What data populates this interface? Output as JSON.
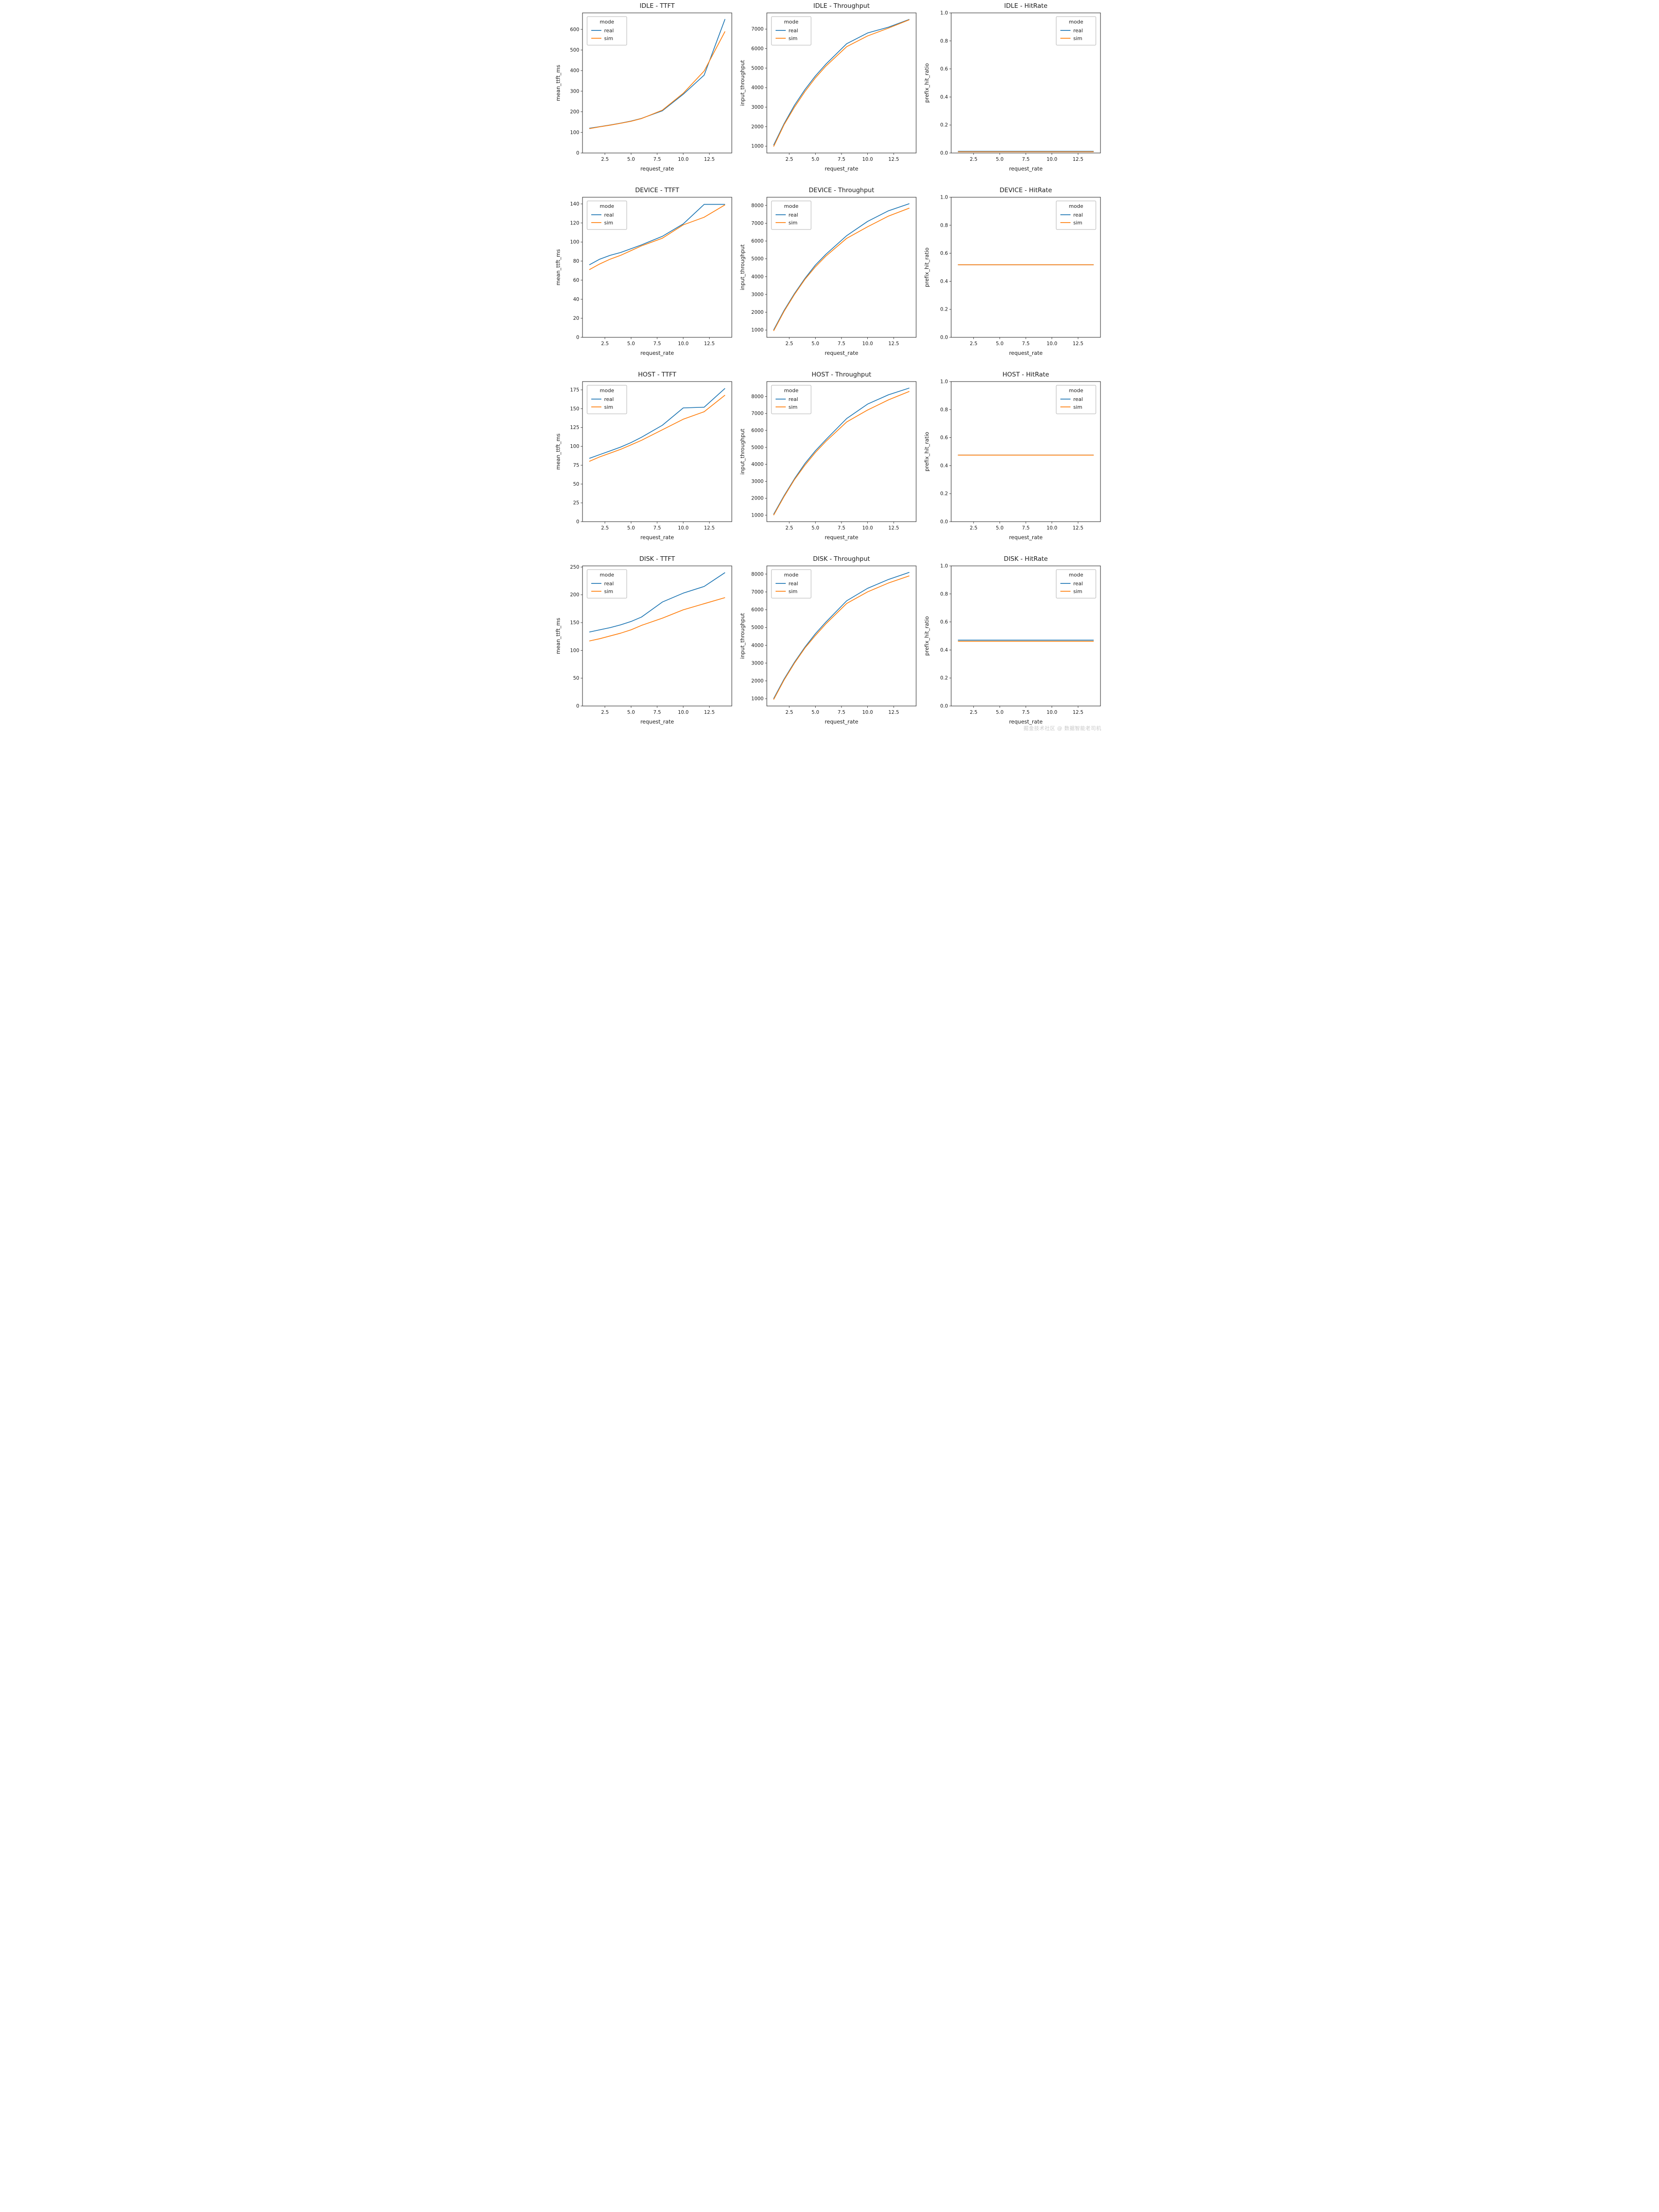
{
  "page": {
    "watermark": "掘金技术社区 @ 数据智能老司机"
  },
  "colors": {
    "real": "#1f77b4",
    "sim": "#ff7f0e"
  },
  "legend": {
    "title": "mode",
    "entries": [
      "real",
      "sim"
    ]
  },
  "chart_data": [
    {
      "id": "idle-ttft",
      "type": "line",
      "title": "IDLE - TTFT",
      "xlabel": "request_rate",
      "ylabel": "mean_ttft_ms",
      "x": [
        1,
        2,
        3,
        4,
        5,
        6,
        8,
        10,
        12,
        14
      ],
      "xlim": [
        0.35,
        14.65
      ],
      "ylim": [
        0,
        680
      ],
      "xticks": [
        2.5,
        5.0,
        7.5,
        10.0,
        12.5
      ],
      "xtick_labels": [
        "2.5",
        "5.0",
        "7.5",
        "10.0",
        "12.5"
      ],
      "yticks": [
        0,
        100,
        200,
        300,
        400,
        500,
        600
      ],
      "ytick_labels": [
        "0",
        "100",
        "200",
        "300",
        "400",
        "500",
        "600"
      ],
      "legend_pos": "upper-left",
      "grid": false,
      "series": [
        {
          "name": "real",
          "color": "#1f77b4",
          "values": [
            120,
            128,
            136,
            145,
            155,
            168,
            205,
            285,
            378,
            650
          ]
        },
        {
          "name": "sim",
          "color": "#ff7f0e",
          "values": [
            118,
            127,
            135,
            144,
            154,
            167,
            208,
            290,
            398,
            590
          ]
        }
      ]
    },
    {
      "id": "idle-throughput",
      "type": "line",
      "title": "IDLE - Throughput",
      "xlabel": "request_rate",
      "ylabel": "input_throughput",
      "x": [
        1,
        2,
        3,
        4,
        5,
        6,
        8,
        10,
        12,
        14
      ],
      "xlim": [
        0.35,
        14.65
      ],
      "ylim": [
        650,
        7830
      ],
      "xticks": [
        2.5,
        5.0,
        7.5,
        10.0,
        12.5
      ],
      "xtick_labels": [
        "2.5",
        "5.0",
        "7.5",
        "10.0",
        "12.5"
      ],
      "yticks": [
        1000,
        2000,
        3000,
        4000,
        5000,
        6000,
        7000
      ],
      "ytick_labels": [
        "1000",
        "2000",
        "3000",
        "4000",
        "5000",
        "6000",
        "7000"
      ],
      "legend_pos": "upper-left",
      "grid": false,
      "series": [
        {
          "name": "real",
          "color": "#1f77b4",
          "values": [
            1050,
            2150,
            3100,
            3900,
            4600,
            5200,
            6250,
            6800,
            7100,
            7500
          ]
        },
        {
          "name": "sim",
          "color": "#ff7f0e",
          "values": [
            980,
            2100,
            3000,
            3800,
            4500,
            5100,
            6100,
            6650,
            7050,
            7480
          ]
        }
      ]
    },
    {
      "id": "idle-hitrate",
      "type": "line",
      "title": "IDLE - HitRate",
      "xlabel": "request_rate",
      "ylabel": "prefix_hit_ratio",
      "x": [
        1,
        2,
        3,
        4,
        5,
        6,
        8,
        10,
        12,
        14
      ],
      "xlim": [
        0.35,
        14.65
      ],
      "ylim": [
        0,
        1
      ],
      "xticks": [
        2.5,
        5.0,
        7.5,
        10.0,
        12.5
      ],
      "xtick_labels": [
        "2.5",
        "5.0",
        "7.5",
        "10.0",
        "12.5"
      ],
      "yticks": [
        0,
        0.2,
        0.4,
        0.6,
        0.8,
        1.0
      ],
      "ytick_labels": [
        "0.0",
        "0.2",
        "0.4",
        "0.6",
        "0.8",
        "1.0"
      ],
      "legend_pos": "upper-right",
      "grid": false,
      "series": [
        {
          "name": "real",
          "color": "#1f77b4",
          "values": [
            0.012,
            0.012,
            0.012,
            0.012,
            0.012,
            0.012,
            0.012,
            0.012,
            0.012,
            0.012
          ]
        },
        {
          "name": "sim",
          "color": "#ff7f0e",
          "values": [
            0.009,
            0.009,
            0.009,
            0.009,
            0.009,
            0.009,
            0.009,
            0.009,
            0.009,
            0.009
          ]
        }
      ]
    },
    {
      "id": "device-ttft",
      "type": "line",
      "title": "DEVICE - TTFT",
      "xlabel": "request_rate",
      "ylabel": "mean_ttft_ms",
      "x": [
        1,
        2,
        3,
        4,
        5,
        6,
        8,
        10,
        12,
        14
      ],
      "xlim": [
        0.35,
        14.65
      ],
      "ylim": [
        0,
        147
      ],
      "xticks": [
        2.5,
        5.0,
        7.5,
        10.0,
        12.5
      ],
      "xtick_labels": [
        "2.5",
        "5.0",
        "7.5",
        "10.0",
        "12.5"
      ],
      "yticks": [
        0,
        20,
        40,
        60,
        80,
        100,
        120,
        140
      ],
      "ytick_labels": [
        "0",
        "20",
        "40",
        "60",
        "80",
        "100",
        "120",
        "140"
      ],
      "legend_pos": "upper-left",
      "grid": false,
      "series": [
        {
          "name": "real",
          "color": "#1f77b4",
          "values": [
            76,
            82,
            86,
            89,
            93,
            97,
            106,
            119,
            139.5,
            139.5
          ]
        },
        {
          "name": "sim",
          "color": "#ff7f0e",
          "values": [
            71,
            77,
            82,
            86,
            91,
            96,
            104,
            118,
            126,
            139
          ]
        }
      ]
    },
    {
      "id": "device-throughput",
      "type": "line",
      "title": "DEVICE - Throughput",
      "xlabel": "request_rate",
      "ylabel": "input_throughput",
      "x": [
        1,
        2,
        3,
        4,
        5,
        6,
        8,
        10,
        12,
        14
      ],
      "xlim": [
        0.35,
        14.65
      ],
      "ylim": [
        590,
        8460
      ],
      "xticks": [
        2.5,
        5.0,
        7.5,
        10.0,
        12.5
      ],
      "xtick_labels": [
        "2.5",
        "5.0",
        "7.5",
        "10.0",
        "12.5"
      ],
      "yticks": [
        1000,
        2000,
        3000,
        4000,
        5000,
        6000,
        7000,
        8000
      ],
      "ytick_labels": [
        "1000",
        "2000",
        "3000",
        "4000",
        "5000",
        "6000",
        "7000",
        "8000"
      ],
      "legend_pos": "upper-left",
      "grid": false,
      "series": [
        {
          "name": "real",
          "color": "#1f77b4",
          "values": [
            1000,
            2100,
            3050,
            3900,
            4650,
            5250,
            6300,
            7100,
            7700,
            8100
          ]
        },
        {
          "name": "sim",
          "color": "#ff7f0e",
          "values": [
            950,
            2050,
            3000,
            3850,
            4550,
            5150,
            6150,
            6800,
            7400,
            7850
          ]
        }
      ]
    },
    {
      "id": "device-hitrate",
      "type": "line",
      "title": "DEVICE - HitRate",
      "xlabel": "request_rate",
      "ylabel": "prefix_hit_ratio",
      "x": [
        1,
        2,
        3,
        4,
        5,
        6,
        8,
        10,
        12,
        14
      ],
      "xlim": [
        0.35,
        14.65
      ],
      "ylim": [
        0,
        1
      ],
      "xticks": [
        2.5,
        5.0,
        7.5,
        10.0,
        12.5
      ],
      "xtick_labels": [
        "2.5",
        "5.0",
        "7.5",
        "10.0",
        "12.5"
      ],
      "yticks": [
        0,
        0.2,
        0.4,
        0.6,
        0.8,
        1.0
      ],
      "ytick_labels": [
        "0.0",
        "0.2",
        "0.4",
        "0.6",
        "0.8",
        "1.0"
      ],
      "legend_pos": "upper-right",
      "grid": false,
      "series": [
        {
          "name": "real",
          "color": "#1f77b4",
          "values": [
            0.518,
            0.518,
            0.518,
            0.518,
            0.518,
            0.518,
            0.518,
            0.518,
            0.518,
            0.518
          ]
        },
        {
          "name": "sim",
          "color": "#ff7f0e",
          "values": [
            0.518,
            0.518,
            0.518,
            0.518,
            0.518,
            0.518,
            0.518,
            0.518,
            0.518,
            0.518
          ]
        }
      ]
    },
    {
      "id": "host-ttft",
      "type": "line",
      "title": "HOST - TTFT",
      "xlabel": "request_rate",
      "ylabel": "mean_ttft_ms",
      "x": [
        1,
        2,
        3,
        4,
        5,
        6,
        8,
        10,
        12,
        14
      ],
      "xlim": [
        0.35,
        14.65
      ],
      "ylim": [
        0,
        186
      ],
      "xticks": [
        2.5,
        5.0,
        7.5,
        10.0,
        12.5
      ],
      "xtick_labels": [
        "2.5",
        "5.0",
        "7.5",
        "10.0",
        "12.5"
      ],
      "yticks": [
        0,
        25,
        50,
        75,
        100,
        125,
        150,
        175
      ],
      "ytick_labels": [
        "0",
        "25",
        "50",
        "75",
        "100",
        "125",
        "150",
        "175"
      ],
      "legend_pos": "upper-left",
      "grid": false,
      "series": [
        {
          "name": "real",
          "color": "#1f77b4",
          "values": [
            84,
            89,
            94,
            99,
            105,
            112,
            128,
            151,
            152,
            177
          ]
        },
        {
          "name": "sim",
          "color": "#ff7f0e",
          "values": [
            80,
            86,
            91,
            96,
            102,
            108,
            122,
            136,
            146,
            168
          ]
        }
      ]
    },
    {
      "id": "host-throughput",
      "type": "line",
      "title": "HOST - Throughput",
      "xlabel": "request_rate",
      "ylabel": "input_throughput",
      "x": [
        1,
        2,
        3,
        4,
        5,
        6,
        8,
        10,
        12,
        14
      ],
      "xlim": [
        0.35,
        14.65
      ],
      "ylim": [
        620,
        8880
      ],
      "xticks": [
        2.5,
        5.0,
        7.5,
        10.0,
        12.5
      ],
      "xtick_labels": [
        "2.5",
        "5.0",
        "7.5",
        "10.0",
        "12.5"
      ],
      "yticks": [
        1000,
        2000,
        3000,
        4000,
        5000,
        6000,
        7000,
        8000
      ],
      "ytick_labels": [
        "1000",
        "2000",
        "3000",
        "4000",
        "5000",
        "6000",
        "7000",
        "8000"
      ],
      "legend_pos": "upper-left",
      "grid": false,
      "series": [
        {
          "name": "real",
          "color": "#1f77b4",
          "values": [
            1050,
            2150,
            3150,
            4050,
            4800,
            5450,
            6700,
            7550,
            8100,
            8500
          ]
        },
        {
          "name": "sim",
          "color": "#ff7f0e",
          "values": [
            1000,
            2100,
            3100,
            3950,
            4700,
            5350,
            6500,
            7200,
            7800,
            8300
          ]
        }
      ]
    },
    {
      "id": "host-hitrate",
      "type": "line",
      "title": "HOST - HitRate",
      "xlabel": "request_rate",
      "ylabel": "prefix_hit_ratio",
      "x": [
        1,
        2,
        3,
        4,
        5,
        6,
        8,
        10,
        12,
        14
      ],
      "xlim": [
        0.35,
        14.65
      ],
      "ylim": [
        0,
        1
      ],
      "xticks": [
        2.5,
        5.0,
        7.5,
        10.0,
        12.5
      ],
      "xtick_labels": [
        "2.5",
        "5.0",
        "7.5",
        "10.0",
        "12.5"
      ],
      "yticks": [
        0,
        0.2,
        0.4,
        0.6,
        0.8,
        1.0
      ],
      "ytick_labels": [
        "0.0",
        "0.2",
        "0.4",
        "0.6",
        "0.8",
        "1.0"
      ],
      "legend_pos": "upper-right",
      "grid": false,
      "series": [
        {
          "name": "real",
          "color": "#1f77b4",
          "values": [
            0.475,
            0.475,
            0.475,
            0.475,
            0.475,
            0.475,
            0.475,
            0.475,
            0.475,
            0.475
          ]
        },
        {
          "name": "sim",
          "color": "#ff7f0e",
          "values": [
            0.475,
            0.475,
            0.475,
            0.475,
            0.475,
            0.475,
            0.475,
            0.475,
            0.475,
            0.475
          ]
        }
      ]
    },
    {
      "id": "disk-ttft",
      "type": "line",
      "title": "DISK - TTFT",
      "xlabel": "request_rate",
      "ylabel": "mean_ttft_ms",
      "x": [
        1,
        2,
        3,
        4,
        5,
        6,
        8,
        10,
        12,
        14
      ],
      "xlim": [
        0.35,
        14.65
      ],
      "ylim": [
        0,
        252
      ],
      "xticks": [
        2.5,
        5.0,
        7.5,
        10.0,
        12.5
      ],
      "xtick_labels": [
        "2.5",
        "5.0",
        "7.5",
        "10.0",
        "12.5"
      ],
      "yticks": [
        0,
        50,
        100,
        150,
        200,
        250
      ],
      "ytick_labels": [
        "0",
        "50",
        "100",
        "150",
        "200",
        "250"
      ],
      "legend_pos": "upper-left",
      "grid": false,
      "series": [
        {
          "name": "real",
          "color": "#1f77b4",
          "values": [
            133,
            137,
            141,
            146,
            152,
            160,
            187,
            203,
            215,
            240
          ]
        },
        {
          "name": "sim",
          "color": "#ff7f0e",
          "values": [
            117,
            121,
            126,
            131,
            137,
            145,
            158,
            173,
            184,
            195
          ]
        }
      ]
    },
    {
      "id": "disk-throughput",
      "type": "line",
      "title": "DISK - Throughput",
      "xlabel": "request_rate",
      "ylabel": "input_throughput",
      "x": [
        1,
        2,
        3,
        4,
        5,
        6,
        8,
        10,
        12,
        14
      ],
      "xlim": [
        0.35,
        14.65
      ],
      "ylim": [
        590,
        8460
      ],
      "xticks": [
        2.5,
        5.0,
        7.5,
        10.0,
        12.5
      ],
      "xtick_labels": [
        "2.5",
        "5.0",
        "7.5",
        "10.0",
        "12.5"
      ],
      "yticks": [
        1000,
        2000,
        3000,
        4000,
        5000,
        6000,
        7000,
        8000
      ],
      "ytick_labels": [
        "1000",
        "2000",
        "3000",
        "4000",
        "5000",
        "6000",
        "7000",
        "8000"
      ],
      "legend_pos": "upper-left",
      "grid": false,
      "series": [
        {
          "name": "real",
          "color": "#1f77b4",
          "values": [
            1000,
            2100,
            3050,
            3900,
            4650,
            5300,
            6500,
            7200,
            7700,
            8100
          ]
        },
        {
          "name": "sim",
          "color": "#ff7f0e",
          "values": [
            950,
            2050,
            3000,
            3850,
            4550,
            5200,
            6350,
            7000,
            7500,
            7900
          ]
        }
      ]
    },
    {
      "id": "disk-hitrate",
      "type": "line",
      "title": "DISK - HitRate",
      "xlabel": "request_rate",
      "ylabel": "prefix_hit_ratio",
      "x": [
        1,
        2,
        3,
        4,
        5,
        6,
        8,
        10,
        12,
        14
      ],
      "xlim": [
        0.35,
        14.65
      ],
      "ylim": [
        0,
        1
      ],
      "xticks": [
        2.5,
        5.0,
        7.5,
        10.0,
        12.5
      ],
      "xtick_labels": [
        "2.5",
        "5.0",
        "7.5",
        "10.0",
        "12.5"
      ],
      "yticks": [
        0,
        0.2,
        0.4,
        0.6,
        0.8,
        1.0
      ],
      "ytick_labels": [
        "0.0",
        "0.2",
        "0.4",
        "0.6",
        "0.8",
        "1.0"
      ],
      "legend_pos": "upper-right",
      "grid": false,
      "series": [
        {
          "name": "real",
          "color": "#1f77b4",
          "values": [
            0.47,
            0.47,
            0.47,
            0.47,
            0.47,
            0.47,
            0.47,
            0.47,
            0.47,
            0.47
          ]
        },
        {
          "name": "sim",
          "color": "#ff7f0e",
          "values": [
            0.462,
            0.462,
            0.462,
            0.462,
            0.462,
            0.462,
            0.462,
            0.462,
            0.462,
            0.462
          ]
        }
      ]
    }
  ]
}
